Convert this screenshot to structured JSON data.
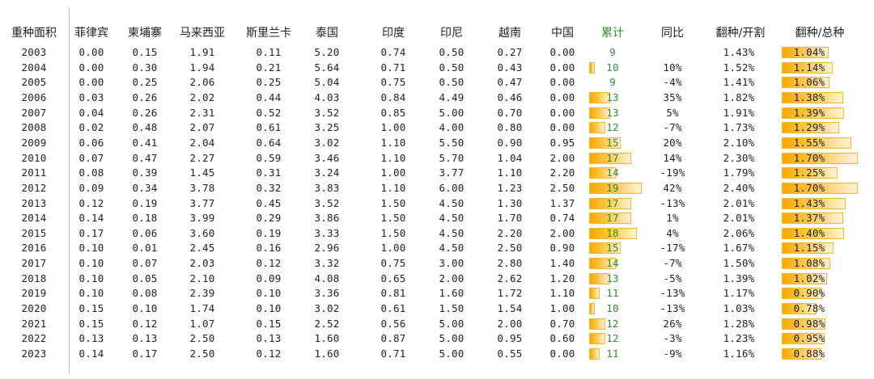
{
  "table": {
    "headers": [
      "重种面积",
      "菲律宾",
      "柬埔寨",
      "马来西亚",
      "斯里兰卡",
      "泰国",
      "印度",
      "印尼",
      "越南",
      "中国",
      "累计",
      "同比",
      "翻种/开割",
      "翻种/总种"
    ],
    "rows": [
      {
        "year": "2003",
        "ph": "0.00",
        "kh": "0.15",
        "my": "1.91",
        "lk": "0.11",
        "th": "5.20",
        "in": "0.74",
        "id": "0.50",
        "vn": "0.27",
        "cn": "0.00",
        "total": "9",
        "yoy": "",
        "replant_tapping": "1.43%",
        "replant_total": "1.04%"
      },
      {
        "year": "2004",
        "ph": "0.00",
        "kh": "0.30",
        "my": "1.94",
        "lk": "0.21",
        "th": "5.64",
        "in": "0.71",
        "id": "0.50",
        "vn": "0.43",
        "cn": "0.00",
        "total": "10",
        "yoy": "10%",
        "replant_tapping": "1.52%",
        "replant_total": "1.14%"
      },
      {
        "year": "2005",
        "ph": "0.00",
        "kh": "0.25",
        "my": "2.06",
        "lk": "0.25",
        "th": "5.04",
        "in": "0.75",
        "id": "0.50",
        "vn": "0.47",
        "cn": "0.00",
        "total": "9",
        "yoy": "-4%",
        "replant_tapping": "1.41%",
        "replant_total": "1.06%"
      },
      {
        "year": "2006",
        "ph": "0.03",
        "kh": "0.26",
        "my": "2.02",
        "lk": "0.44",
        "th": "4.03",
        "in": "0.84",
        "id": "4.49",
        "vn": "0.46",
        "cn": "0.00",
        "total": "13",
        "yoy": "35%",
        "replant_tapping": "1.82%",
        "replant_total": "1.38%"
      },
      {
        "year": "2007",
        "ph": "0.04",
        "kh": "0.26",
        "my": "2.31",
        "lk": "0.52",
        "th": "3.52",
        "in": "0.85",
        "id": "5.00",
        "vn": "0.70",
        "cn": "0.00",
        "total": "13",
        "yoy": "5%",
        "replant_tapping": "1.91%",
        "replant_total": "1.39%"
      },
      {
        "year": "2008",
        "ph": "0.02",
        "kh": "0.48",
        "my": "2.07",
        "lk": "0.61",
        "th": "3.25",
        "in": "1.00",
        "id": "4.00",
        "vn": "0.80",
        "cn": "0.00",
        "total": "12",
        "yoy": "-7%",
        "replant_tapping": "1.73%",
        "replant_total": "1.29%"
      },
      {
        "year": "2009",
        "ph": "0.06",
        "kh": "0.41",
        "my": "2.04",
        "lk": "0.64",
        "th": "3.02",
        "in": "1.10",
        "id": "5.50",
        "vn": "0.90",
        "cn": "0.95",
        "total": "15",
        "yoy": "20%",
        "replant_tapping": "2.10%",
        "replant_total": "1.55%"
      },
      {
        "year": "2010",
        "ph": "0.07",
        "kh": "0.47",
        "my": "2.27",
        "lk": "0.59",
        "th": "3.46",
        "in": "1.10",
        "id": "5.70",
        "vn": "1.04",
        "cn": "2.00",
        "total": "17",
        "yoy": "14%",
        "replant_tapping": "2.30%",
        "replant_total": "1.70%"
      },
      {
        "year": "2011",
        "ph": "0.08",
        "kh": "0.39",
        "my": "1.45",
        "lk": "0.31",
        "th": "3.24",
        "in": "1.00",
        "id": "3.77",
        "vn": "1.10",
        "cn": "2.20",
        "total": "14",
        "yoy": "-19%",
        "replant_tapping": "1.79%",
        "replant_total": "1.25%"
      },
      {
        "year": "2012",
        "ph": "0.09",
        "kh": "0.34",
        "my": "3.78",
        "lk": "0.32",
        "th": "3.83",
        "in": "1.10",
        "id": "6.00",
        "vn": "1.23",
        "cn": "2.50",
        "total": "19",
        "yoy": "42%",
        "replant_tapping": "2.40%",
        "replant_total": "1.70%"
      },
      {
        "year": "2013",
        "ph": "0.12",
        "kh": "0.19",
        "my": "3.77",
        "lk": "0.45",
        "th": "3.52",
        "in": "1.50",
        "id": "4.50",
        "vn": "1.30",
        "cn": "1.37",
        "total": "17",
        "yoy": "-13%",
        "replant_tapping": "2.01%",
        "replant_total": "1.43%"
      },
      {
        "year": "2014",
        "ph": "0.14",
        "kh": "0.18",
        "my": "3.99",
        "lk": "0.29",
        "th": "3.86",
        "in": "1.50",
        "id": "4.50",
        "vn": "1.70",
        "cn": "0.74",
        "total": "17",
        "yoy": "1%",
        "replant_tapping": "2.01%",
        "replant_total": "1.37%"
      },
      {
        "year": "2015",
        "ph": "0.17",
        "kh": "0.06",
        "my": "3.60",
        "lk": "0.19",
        "th": "3.33",
        "in": "1.50",
        "id": "4.50",
        "vn": "2.20",
        "cn": "2.00",
        "total": "18",
        "yoy": "4%",
        "replant_tapping": "2.06%",
        "replant_total": "1.40%"
      },
      {
        "year": "2016",
        "ph": "0.10",
        "kh": "0.01",
        "my": "2.45",
        "lk": "0.16",
        "th": "2.96",
        "in": "1.00",
        "id": "4.50",
        "vn": "2.50",
        "cn": "0.90",
        "total": "15",
        "yoy": "-17%",
        "replant_tapping": "1.67%",
        "replant_total": "1.15%"
      },
      {
        "year": "2017",
        "ph": "0.10",
        "kh": "0.07",
        "my": "2.03",
        "lk": "0.12",
        "th": "3.32",
        "in": "0.75",
        "id": "3.00",
        "vn": "2.80",
        "cn": "1.40",
        "total": "14",
        "yoy": "-7%",
        "replant_tapping": "1.50%",
        "replant_total": "1.08%"
      },
      {
        "year": "2018",
        "ph": "0.10",
        "kh": "0.05",
        "my": "2.10",
        "lk": "0.09",
        "th": "4.08",
        "in": "0.65",
        "id": "2.00",
        "vn": "2.62",
        "cn": "1.20",
        "total": "13",
        "yoy": "-5%",
        "replant_tapping": "1.39%",
        "replant_total": "1.02%"
      },
      {
        "year": "2019",
        "ph": "0.10",
        "kh": "0.08",
        "my": "2.39",
        "lk": "0.10",
        "th": "3.36",
        "in": "0.81",
        "id": "1.60",
        "vn": "1.72",
        "cn": "1.10",
        "total": "11",
        "yoy": "-13%",
        "replant_tapping": "1.17%",
        "replant_total": "0.90%"
      },
      {
        "year": "2020",
        "ph": "0.15",
        "kh": "0.10",
        "my": "1.74",
        "lk": "0.10",
        "th": "3.02",
        "in": "0.61",
        "id": "1.50",
        "vn": "1.54",
        "cn": "1.00",
        "total": "10",
        "yoy": "-13%",
        "replant_tapping": "1.03%",
        "replant_total": "0.78%"
      },
      {
        "year": "2021",
        "ph": "0.15",
        "kh": "0.12",
        "my": "1.07",
        "lk": "0.15",
        "th": "2.52",
        "in": "0.56",
        "id": "5.00",
        "vn": "2.00",
        "cn": "0.70",
        "total": "12",
        "yoy": "26%",
        "replant_tapping": "1.28%",
        "replant_total": "0.98%"
      },
      {
        "year": "2022",
        "ph": "0.13",
        "kh": "0.13",
        "my": "2.50",
        "lk": "0.13",
        "th": "1.60",
        "in": "0.87",
        "id": "5.00",
        "vn": "0.95",
        "cn": "0.60",
        "total": "12",
        "yoy": "-3%",
        "replant_tapping": "1.23%",
        "replant_total": "0.95%"
      },
      {
        "year": "2023",
        "ph": "0.14",
        "kh": "0.17",
        "my": "2.50",
        "lk": "0.12",
        "th": "1.60",
        "in": "0.71",
        "id": "5.00",
        "vn": "0.55",
        "cn": "0.00",
        "total": "11",
        "yoy": "-9%",
        "replant_tapping": "1.16%",
        "replant_total": "0.88%"
      }
    ]
  },
  "colors": {
    "accent_green": "#2e8b2e",
    "databar_orange": "#f7a800",
    "divider": "#bdbdbd"
  }
}
